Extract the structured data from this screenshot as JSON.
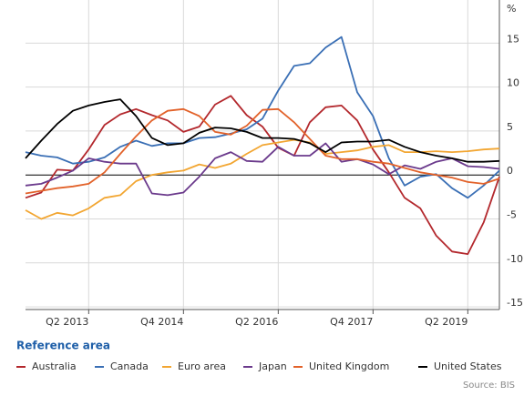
{
  "chart_data": {
    "type": "line",
    "y_unit": "%",
    "categories": [
      null,
      null,
      null,
      null,
      "Q2 2013",
      null,
      null,
      null,
      null,
      null,
      "Q4 2014",
      null,
      null,
      null,
      null,
      null,
      "Q2 2016",
      null,
      null,
      null,
      null,
      null,
      "Q4 2017",
      null,
      null,
      null,
      null,
      null,
      "Q2 2019",
      null,
      null
    ],
    "ylim": [
      -15.3,
      19.9
    ],
    "yticks": [
      -15,
      -10,
      -5,
      0,
      5,
      10,
      15
    ],
    "grid": true,
    "legend_title": "Reference area",
    "legend_position": "bottom",
    "source": "Source: BIS",
    "series": [
      {
        "name": "Australia",
        "color": "#b3282d",
        "values": [
          -2.6,
          -2,
          0.6,
          0.5,
          2.9,
          5.7,
          6.9,
          7.5,
          6.8,
          6.2,
          4.9,
          5.5,
          8,
          9,
          6.8,
          5.5,
          3.1,
          2.2,
          6,
          7.7,
          7.9,
          6.2,
          2.9,
          0.3,
          -2.6,
          -3.8,
          -6.9,
          -8.7,
          -9,
          -5.4,
          -0.2
        ]
      },
      {
        "name": "Canada",
        "color": "#3a6fb5",
        "values": [
          2.6,
          2.2,
          2,
          1.3,
          1.5,
          2,
          3.2,
          3.9,
          3.3,
          3.6,
          3.6,
          4.2,
          4.3,
          4.7,
          5.2,
          6.4,
          9.6,
          12.4,
          12.7,
          14.5,
          15.7,
          9.4,
          6.7,
          1.9,
          -1.2,
          -0.2,
          0.1,
          -1.5,
          -2.6,
          -1.2,
          0.5
        ]
      },
      {
        "name": "Euro area",
        "color": "#f2a632",
        "values": [
          -4,
          -5,
          -4.3,
          -4.6,
          -3.8,
          -2.6,
          -2.3,
          -0.7,
          0,
          0.3,
          0.5,
          1.2,
          0.8,
          1.3,
          2.4,
          3.4,
          3.7,
          4,
          3.7,
          2.4,
          2.6,
          2.8,
          3.2,
          3.4,
          2.6,
          2.6,
          2.7,
          2.6,
          2.7,
          2.9,
          3
        ]
      },
      {
        "name": "Japan",
        "color": "#6b3a8c",
        "values": [
          -1.2,
          -1,
          -0.3,
          0.5,
          1.9,
          1.5,
          1.3,
          1.3,
          -2.1,
          -2.3,
          -2,
          -0.2,
          1.9,
          2.6,
          1.6,
          1.5,
          3.2,
          2.2,
          2.2,
          3.6,
          1.5,
          1.8,
          1.2,
          0.1,
          1.1,
          0.7,
          1.5,
          1.9,
          1,
          0.9,
          0.7
        ]
      },
      {
        "name": "United Kingdom",
        "color": "#e2622a",
        "values": [
          -2.1,
          -1.8,
          -1.5,
          -1.3,
          -1,
          0.3,
          2.4,
          4.4,
          6.2,
          7.3,
          7.5,
          6.7,
          4.9,
          4.6,
          5.6,
          7.4,
          7.5,
          6,
          4.1,
          2.2,
          1.8,
          1.8,
          1.5,
          1.3,
          0.8,
          0.3,
          0,
          -0.3,
          -0.8,
          -1,
          -0.4
        ]
      },
      {
        "name": "United States",
        "color": "#000000",
        "values": [
          1.9,
          3.9,
          5.8,
          7.3,
          7.9,
          8.3,
          8.6,
          6.7,
          4.2,
          3.4,
          3.6,
          4.8,
          5.4,
          5.3,
          4.9,
          4.2,
          4.2,
          4.1,
          3.6,
          2.6,
          3.7,
          3.8,
          3.8,
          4,
          3.2,
          2.6,
          2.2,
          1.9,
          1.5,
          1.5,
          1.6
        ]
      }
    ]
  }
}
